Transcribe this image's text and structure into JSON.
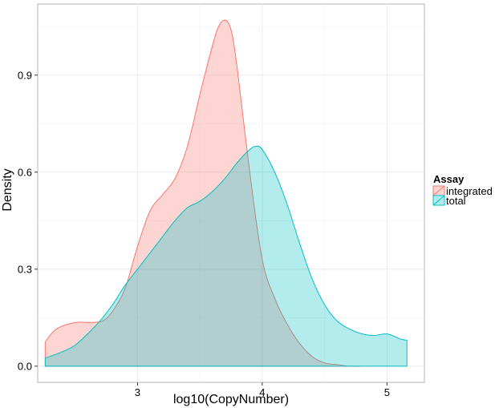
{
  "chart_data": {
    "type": "area",
    "xlabel": "log10(CopyNumber)",
    "ylabel": "Density",
    "xlim": [
      2.2,
      5.3
    ],
    "ylim": [
      -0.05,
      1.12
    ],
    "x_ticks": [
      3,
      4,
      5
    ],
    "x_tick_labels": [
      "3",
      "4",
      "5"
    ],
    "y_ticks": [
      0.0,
      0.3,
      0.6,
      0.9
    ],
    "y_tick_labels": [
      "0.0",
      "0.3",
      "0.6",
      "0.9"
    ],
    "grid": true,
    "legend": {
      "title": "Assay",
      "position": "right",
      "entries": [
        "integrated",
        "total"
      ]
    },
    "series": [
      {
        "name": "integrated",
        "fill": "#F8766D",
        "stroke": "#F8766D",
        "fill_opacity": 0.3,
        "x": [
          2.26,
          2.35,
          2.5,
          2.62,
          2.72,
          2.8,
          2.9,
          3.0,
          3.1,
          3.2,
          3.3,
          3.4,
          3.5,
          3.6,
          3.65,
          3.7,
          3.75,
          3.8,
          3.9,
          4.0,
          4.1,
          4.2,
          4.3,
          4.4,
          4.5,
          4.6,
          4.7,
          4.8
        ],
        "y": [
          0.075,
          0.115,
          0.135,
          0.135,
          0.14,
          0.17,
          0.24,
          0.37,
          0.48,
          0.53,
          0.58,
          0.68,
          0.84,
          0.99,
          1.05,
          1.07,
          1.04,
          0.92,
          0.6,
          0.33,
          0.21,
          0.13,
          0.07,
          0.03,
          0.01,
          0.005,
          0.0,
          0.0
        ]
      },
      {
        "name": "total",
        "fill": "#00BFC4",
        "stroke": "#00BFC4",
        "fill_opacity": 0.3,
        "x": [
          2.26,
          2.4,
          2.5,
          2.6,
          2.7,
          2.8,
          2.9,
          3.0,
          3.1,
          3.2,
          3.3,
          3.4,
          3.5,
          3.6,
          3.7,
          3.8,
          3.9,
          3.95,
          4.0,
          4.1,
          4.2,
          4.3,
          4.4,
          4.5,
          4.6,
          4.7,
          4.8,
          4.9,
          5.0,
          5.1,
          5.16
        ],
        "y": [
          0.025,
          0.045,
          0.065,
          0.1,
          0.14,
          0.19,
          0.25,
          0.3,
          0.35,
          0.4,
          0.45,
          0.49,
          0.51,
          0.54,
          0.58,
          0.63,
          0.67,
          0.68,
          0.67,
          0.6,
          0.5,
          0.38,
          0.27,
          0.19,
          0.14,
          0.115,
          0.1,
          0.095,
          0.1,
          0.085,
          0.08
        ]
      }
    ]
  }
}
